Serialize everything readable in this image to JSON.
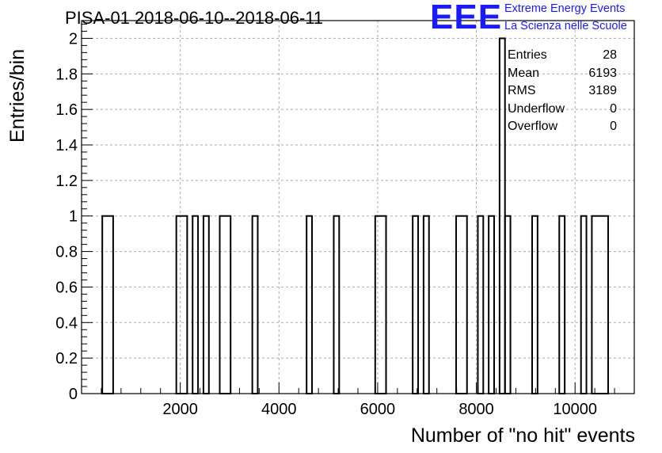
{
  "title": "PISA-01 2018-06-10--2018-06-11",
  "logo": {
    "mark": "EEE",
    "line1": "Extreme Energy Events",
    "line2": "La Scienza nelle Scuole"
  },
  "stats": [
    {
      "label": "Entries",
      "value": "28"
    },
    {
      "label": "Mean",
      "value": "6193"
    },
    {
      "label": "RMS",
      "value": "3189"
    },
    {
      "label": "Underflow",
      "value": "0"
    },
    {
      "label": "Overflow",
      "value": "0"
    }
  ],
  "colors": {
    "bars": "#000000",
    "grid": "#aaaaaa",
    "logo": "#1a1aff"
  },
  "chart_data": {
    "type": "bar",
    "histogram": true,
    "xlabel": "Number of \"no hit\" events",
    "ylabel": "Entries/bin",
    "xlim": [
      0,
      11200
    ],
    "ylim": [
      0,
      2.1
    ],
    "grid": true,
    "xticks": [
      2000,
      4000,
      6000,
      8000,
      10000
    ],
    "yticks": [
      0,
      0.2,
      0.4,
      0.6,
      0.8,
      1,
      1.2,
      1.4,
      1.6,
      1.8,
      2
    ],
    "ytick_labels": [
      "0",
      "0.2",
      "0.4",
      "0.6",
      "0.8",
      "1",
      "1.2",
      "1.4",
      "1.6",
      "1.8",
      "2"
    ],
    "bins": [
      {
        "x0": 420,
        "x1": 640,
        "value": 1
      },
      {
        "x0": 1920,
        "x1": 2140,
        "value": 1
      },
      {
        "x0": 2250,
        "x1": 2360,
        "value": 1
      },
      {
        "x0": 2470,
        "x1": 2580,
        "value": 1
      },
      {
        "x0": 2800,
        "x1": 3020,
        "value": 1
      },
      {
        "x0": 3460,
        "x1": 3570,
        "value": 1
      },
      {
        "x0": 4560,
        "x1": 4670,
        "value": 1
      },
      {
        "x0": 5110,
        "x1": 5220,
        "value": 1
      },
      {
        "x0": 5950,
        "x1": 6170,
        "value": 1
      },
      {
        "x0": 6710,
        "x1": 6820,
        "value": 1
      },
      {
        "x0": 6930,
        "x1": 7040,
        "value": 1
      },
      {
        "x0": 7590,
        "x1": 7810,
        "value": 1
      },
      {
        "x0": 8030,
        "x1": 8140,
        "value": 1
      },
      {
        "x0": 8250,
        "x1": 8360,
        "value": 1
      },
      {
        "x0": 8470,
        "x1": 8580,
        "value": 2
      },
      {
        "x0": 8580,
        "x1": 8690,
        "value": 1
      },
      {
        "x0": 9130,
        "x1": 9240,
        "value": 1
      },
      {
        "x0": 9680,
        "x1": 9790,
        "value": 1
      },
      {
        "x0": 10120,
        "x1": 10230,
        "value": 1
      },
      {
        "x0": 10340,
        "x1": 10670,
        "value": 1
      }
    ]
  }
}
